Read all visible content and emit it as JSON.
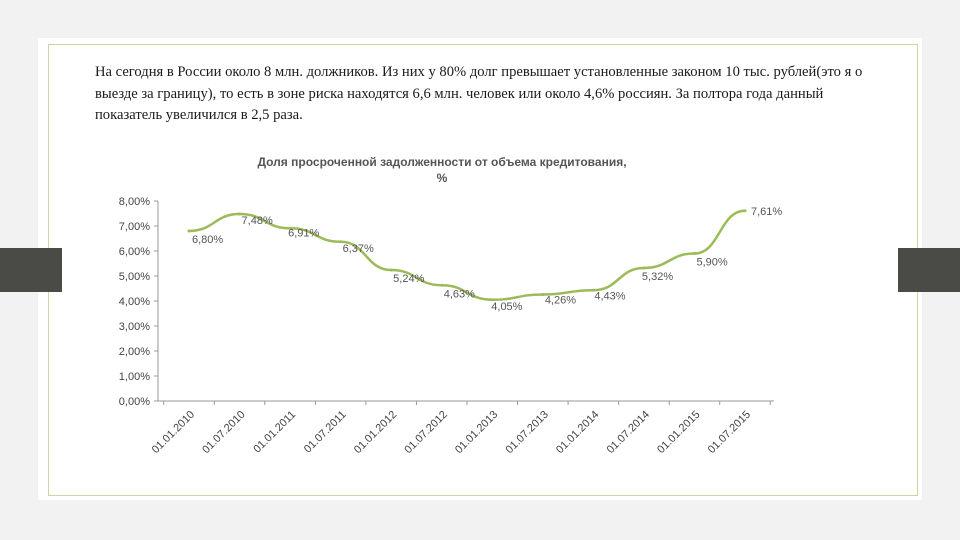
{
  "slide": {
    "intro_text": "На сегодня в России около 8 млн. должников. Из них у 80% долг превышает установленные законом 10 тыс. рублей(это я о выезде  за границу), то есть в зоне риска находятся 6,6 млн. человек или около 4,6% россиян. За полтора года данный показатель увеличился в 2,5 раза."
  },
  "chart_data": {
    "type": "line",
    "title": "Доля просроченной задолженности от объема кредитования,",
    "subtitle": "%",
    "xlabel": "",
    "ylabel": "",
    "ylim": [
      0,
      8
    ],
    "y_ticks": [
      "0,00%",
      "1,00%",
      "2,00%",
      "3,00%",
      "4,00%",
      "5,00%",
      "6,00%",
      "7,00%",
      "8,00%"
    ],
    "categories": [
      "01.01.2010",
      "01.07.2010",
      "01.01.2011",
      "01.07.2011",
      "01.01.2012",
      "01.07.2012",
      "01.01.2013",
      "01.07.2013",
      "01.01.2014",
      "01.07.2014",
      "01.01.2015",
      "01.07.2015"
    ],
    "series": [
      {
        "values": [
          6.8,
          7.48,
          6.91,
          6.37,
          5.24,
          4.63,
          4.05,
          4.26,
          4.43,
          5.32,
          5.9,
          7.61
        ],
        "labels": [
          "6,80%",
          "7,48%",
          "6,91%",
          "6,37%",
          "5,24%",
          "4,63%",
          "4,05%",
          "4,26%",
          "4,43%",
          "5,32%",
          "5,90%",
          "7,61%"
        ]
      }
    ],
    "grid": false,
    "legend": "none",
    "line_color": "#9bbb59"
  }
}
